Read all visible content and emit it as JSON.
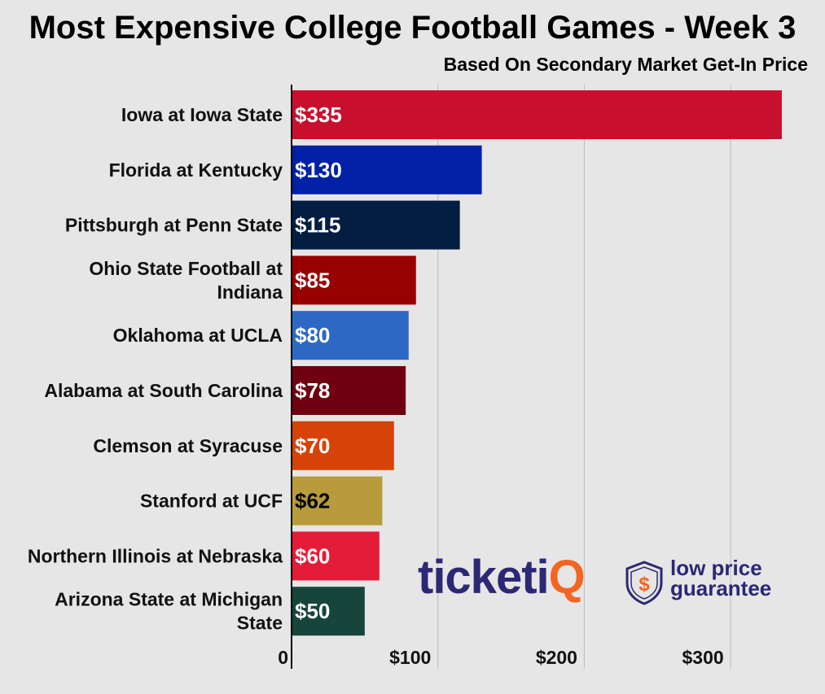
{
  "header": {
    "title": "Most Expensive College Football Games - Week 3",
    "subtitle": "Based On Secondary Market Get-In Price"
  },
  "chart_data": {
    "type": "bar",
    "orientation": "horizontal",
    "title": "Most Expensive College Football Games - Week 3",
    "subtitle": "Based On Secondary Market Get-In Price",
    "xlabel": "",
    "ylabel": "",
    "xlim": [
      0,
      370
    ],
    "grid": true,
    "categories": [
      [
        "Iowa at Iowa State"
      ],
      [
        "Florida at Kentucky"
      ],
      [
        "Pittsburgh at Penn State"
      ],
      [
        "Ohio State Football at",
        "Indiana"
      ],
      [
        "Oklahoma at UCLA"
      ],
      [
        "Alabama at South Carolina"
      ],
      [
        "Clemson at Syracuse"
      ],
      [
        "Stanford at UCF"
      ],
      [
        "Northern Illinois at Nebraska"
      ],
      [
        "Arizona State at Michigan",
        "State"
      ]
    ],
    "values": [
      335,
      130,
      115,
      85,
      80,
      78,
      70,
      62,
      60,
      50
    ],
    "value_labels": [
      "$335",
      "$130",
      "$115",
      "$85",
      "$80",
      "$78",
      "$70",
      "$62",
      "$60",
      "$50"
    ],
    "colors": [
      "#c8102e",
      "#0021a5",
      "#041e42",
      "#990000",
      "#2d68c4",
      "#6f0010",
      "#d64309",
      "#b89b3a",
      "#e41c38",
      "#18453b"
    ],
    "label_colors": [
      "#ffffff",
      "#ffffff",
      "#ffffff",
      "#ffffff",
      "#ffffff",
      "#ffffff",
      "#ffffff",
      "#000000",
      "#ffffff",
      "#ffffff"
    ],
    "xticks": [
      0,
      100,
      200,
      300
    ],
    "xtick_labels": [
      "0",
      "$100",
      "$200",
      "$300"
    ]
  },
  "logo": {
    "brand_prefix": "ticketi",
    "brand_suffix": "Q",
    "badge_symbol": "$",
    "tagline_line1": "low price",
    "tagline_line2": "guarantee",
    "colors": {
      "navy": "#2b2874",
      "orange": "#f26522"
    }
  }
}
